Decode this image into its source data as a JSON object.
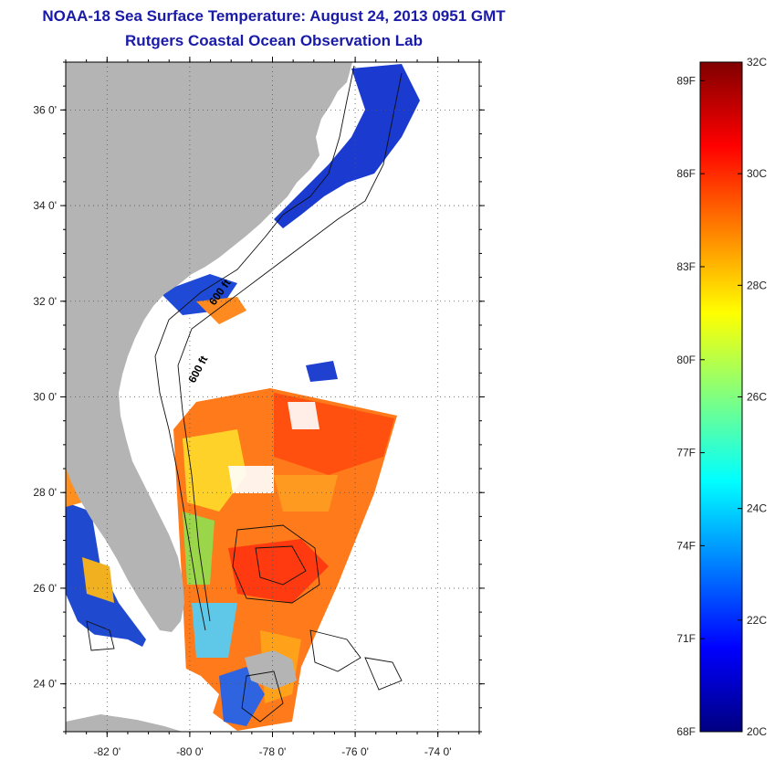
{
  "title": "NOAA-18 Sea Surface Temperature:  August 24, 2013 0951 GMT",
  "subtitle": "Rutgers Coastal Ocean Observation Lab",
  "map": {
    "lon_range": [
      -83,
      -73
    ],
    "lat_range": [
      23,
      37
    ],
    "lon_ticks": [
      -82,
      -80,
      -78,
      -76,
      -74
    ],
    "lon_labels": [
      "-82 0'",
      "-80 0'",
      "-78 0'",
      "-76 0'",
      "-74 0'"
    ],
    "lat_ticks": [
      24,
      26,
      28,
      30,
      32,
      34,
      36
    ],
    "lat_labels": [
      "24 0'",
      "26 0'",
      "28 0'",
      "30 0'",
      "32 0'",
      "34 0'",
      "36 0'"
    ],
    "contour_labels": [
      "600 ft",
      "600 ft"
    ],
    "land_color": "#b4b4b4",
    "grid": "dotted"
  },
  "colorbar": {
    "min_c": 20,
    "max_c": 32,
    "celsius_labels": [
      {
        "value": 32,
        "text": "32C"
      },
      {
        "value": 30,
        "text": "30C"
      },
      {
        "value": 28,
        "text": "28C"
      },
      {
        "value": 26,
        "text": "26C"
      },
      {
        "value": 24,
        "text": "24C"
      },
      {
        "value": 22,
        "text": "22C"
      },
      {
        "value": 20,
        "text": "20C"
      }
    ],
    "fahrenheit_labels": [
      {
        "value": 89,
        "text": "89F"
      },
      {
        "value": 86,
        "text": "86F"
      },
      {
        "value": 83,
        "text": "83F"
      },
      {
        "value": 80,
        "text": "80F"
      },
      {
        "value": 77,
        "text": "77F"
      },
      {
        "value": 74,
        "text": "74F"
      },
      {
        "value": 71,
        "text": "71F"
      },
      {
        "value": 68,
        "text": "68F"
      }
    ],
    "colors": [
      "#000080",
      "#0000ff",
      "#0080ff",
      "#00ffff",
      "#80ff80",
      "#ffff00",
      "#ff8000",
      "#ff0000",
      "#800000"
    ]
  }
}
